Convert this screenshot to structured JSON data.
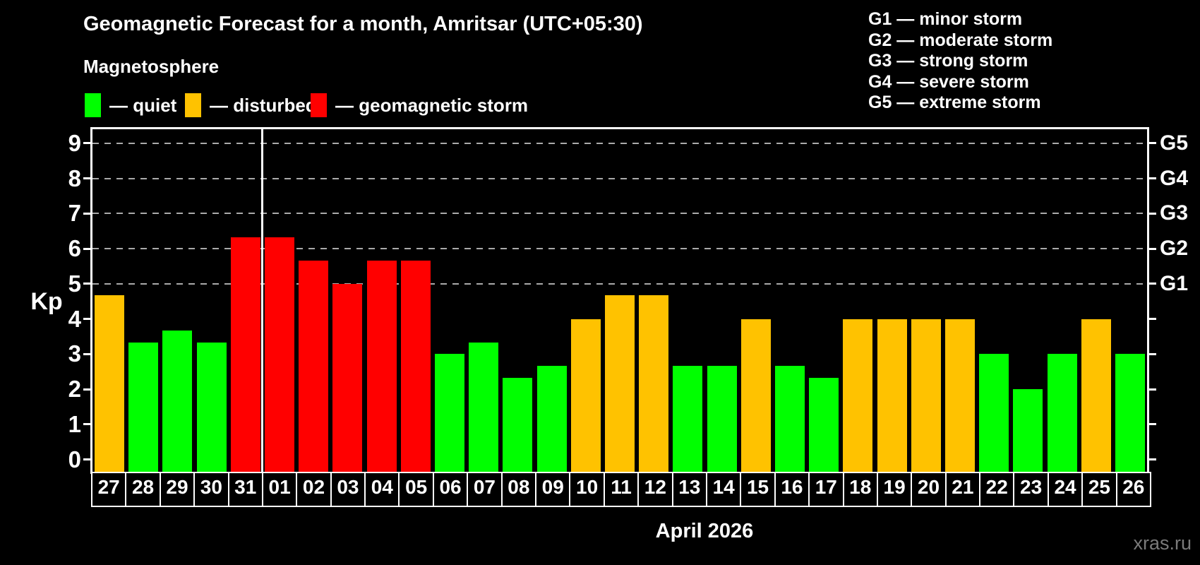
{
  "header": {
    "title": "Geomagnetic Forecast for a month, Amritsar (UTC+05:30)",
    "subtitle": "Magnetosphere",
    "legend": [
      {
        "key": "quiet",
        "label": "— quiet",
        "color": "#00ff00"
      },
      {
        "key": "disturbed",
        "label": "— disturbed",
        "color": "#ffc200"
      },
      {
        "key": "storm",
        "label": "— geomagnetic storm",
        "color": "#ff0000"
      }
    ],
    "storm_scale_legend": [
      "G1 — minor storm",
      "G2 — moderate storm",
      "G3 — strong storm",
      "G4 — severe storm",
      "G5 — extreme storm"
    ]
  },
  "chart_data": {
    "type": "bar",
    "title": "Geomagnetic Forecast for a month, Amritsar (UTC+05:30)",
    "ylabel": "Kp",
    "xlabel": "April 2026",
    "ylim": [
      -0.35,
      9.4
    ],
    "yticks": [
      0,
      1,
      2,
      3,
      4,
      5,
      6,
      7,
      8,
      9
    ],
    "gridlines_at": [
      5,
      6,
      7,
      8,
      9
    ],
    "grid_on": true,
    "right_axis": [
      {
        "kp": 5,
        "label": "G1"
      },
      {
        "kp": 6,
        "label": "G2"
      },
      {
        "kp": 7,
        "label": "G3"
      },
      {
        "kp": 8,
        "label": "G4"
      },
      {
        "kp": 9,
        "label": "G5"
      }
    ],
    "month_separator_after_index": 4,
    "categories": [
      "27",
      "28",
      "29",
      "30",
      "31",
      "01",
      "02",
      "03",
      "04",
      "05",
      "06",
      "07",
      "08",
      "09",
      "10",
      "11",
      "12",
      "13",
      "14",
      "15",
      "16",
      "17",
      "18",
      "19",
      "20",
      "21",
      "22",
      "23",
      "24",
      "25",
      "26"
    ],
    "values": [
      4.67,
      3.33,
      3.67,
      3.33,
      6.33,
      6.33,
      5.67,
      5.0,
      5.67,
      5.67,
      3.0,
      3.33,
      2.33,
      2.67,
      4.0,
      4.67,
      4.67,
      2.67,
      2.67,
      4.0,
      2.67,
      2.33,
      4.0,
      4.0,
      4.0,
      4.0,
      3.0,
      2.0,
      3.0,
      4.0,
      3.0
    ],
    "statuses": [
      "disturbed",
      "quiet",
      "quiet",
      "quiet",
      "storm",
      "storm",
      "storm",
      "storm",
      "storm",
      "storm",
      "quiet",
      "quiet",
      "quiet",
      "quiet",
      "disturbed",
      "disturbed",
      "disturbed",
      "quiet",
      "quiet",
      "disturbed",
      "quiet",
      "quiet",
      "disturbed",
      "disturbed",
      "disturbed",
      "disturbed",
      "quiet",
      "quiet",
      "quiet",
      "disturbed",
      "quiet"
    ],
    "colors": {
      "quiet": "#00ff00",
      "disturbed": "#ffc200",
      "storm": "#ff0000",
      "gridline": "#aaaaaa",
      "axis": "#ffffff",
      "separator": "#ffffff",
      "text": "#ffffff",
      "watermark": "#7a7a7a",
      "background": "#000000"
    }
  },
  "footer": {
    "xaxis_title": "April 2026",
    "watermark": "xras.ru"
  }
}
